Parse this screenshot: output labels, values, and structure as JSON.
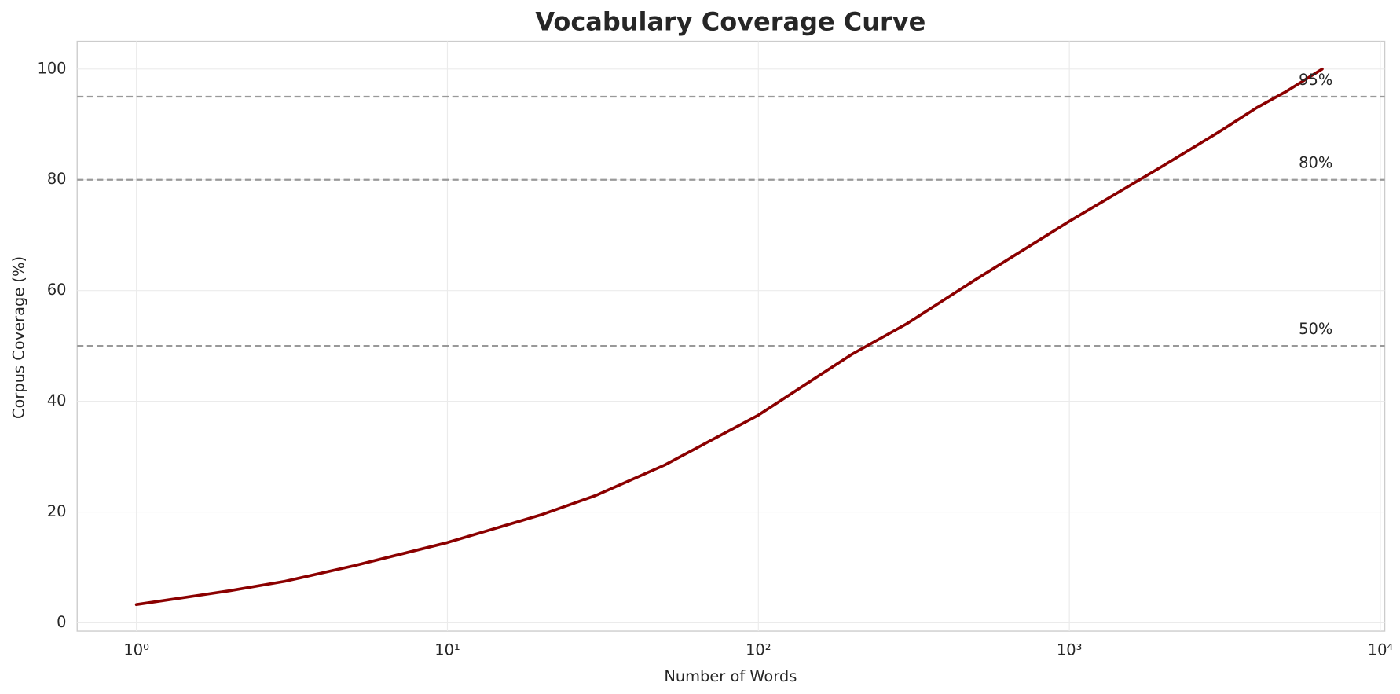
{
  "chart_data": {
    "type": "line",
    "title": "Vocabulary Coverage Curve",
    "x_label": "Number of Words",
    "y_label": "Corpus Coverage (%)",
    "x_scale": "log",
    "grid": true,
    "xlim": [
      0.645,
      10330
    ],
    "ylim": [
      -1.5,
      105
    ],
    "xticks": [
      {
        "value": 1,
        "label": "10⁰"
      },
      {
        "value": 10,
        "label": "10¹"
      },
      {
        "value": 100,
        "label": "10²"
      },
      {
        "value": 1000,
        "label": "10³"
      },
      {
        "value": 10000,
        "label": "10⁴"
      }
    ],
    "yticks": [
      0,
      20,
      40,
      60,
      80,
      100
    ],
    "reference_lines": [
      {
        "value": 95,
        "label": "95%"
      },
      {
        "value": 80,
        "label": "80%"
      },
      {
        "value": 50,
        "label": "50%"
      }
    ],
    "x": [
      1,
      2,
      3,
      5,
      10,
      20,
      30,
      50,
      100,
      200,
      300,
      500,
      1000,
      2000,
      3000,
      4000,
      5000,
      6500
    ],
    "series": [
      {
        "color": "#8b0000",
        "values": [
          3.3,
          5.8,
          7.5,
          10.3,
          14.5,
          19.5,
          23,
          28.5,
          37.5,
          48.5,
          54,
          62,
          72.5,
          82.5,
          88.5,
          93,
          96,
          100
        ]
      }
    ]
  }
}
